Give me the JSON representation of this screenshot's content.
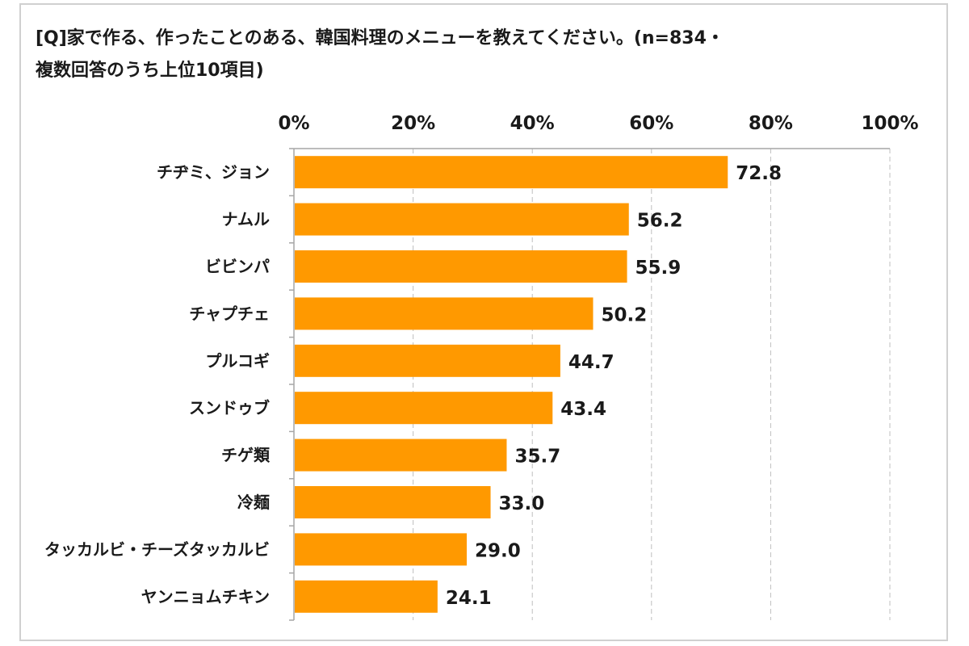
{
  "chart_data": {
    "type": "bar",
    "orientation": "horizontal",
    "title_line1": "[Q]家で作る、作ったことのある、韓国料理のメニューを教えてください。(n=834・",
    "title_line2": "複数回答のうち上位10項目)",
    "categories": [
      "チヂミ、ジョン",
      "ナムル",
      "ビビンパ",
      "チャプチェ",
      "プルコギ",
      "スンドゥブ",
      "チゲ類",
      "冷麺",
      "タッカルビ・チーズタッカルビ",
      "ヤンニョムチキン"
    ],
    "values": [
      72.8,
      56.2,
      55.9,
      50.2,
      44.7,
      43.4,
      35.7,
      33.0,
      29.0,
      24.1
    ],
    "value_labels": [
      "72.8",
      "56.2",
      "55.9",
      "50.2",
      "44.7",
      "43.4",
      "35.7",
      "33.0",
      "29.0",
      "24.1"
    ],
    "xlim": [
      0,
      100
    ],
    "xticks": [
      "0%",
      "20%",
      "40%",
      "60%",
      "80%",
      "100%"
    ],
    "grid": "vertical",
    "bar_color": "#FF9900",
    "grid_color": "#bfbfbf"
  }
}
